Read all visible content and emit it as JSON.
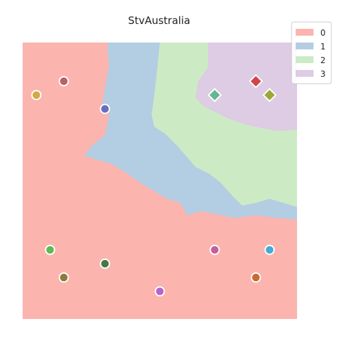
{
  "chart_data": {
    "type": "scatter",
    "title": "StvAustralia",
    "xlabel": "",
    "ylabel": "",
    "xlim": [
      0,
      20
    ],
    "ylim": [
      0,
      20
    ],
    "axes_visible": false,
    "grid": false,
    "legend_placement": "top-right",
    "legend": [
      {
        "label": "0",
        "color": "#fbb4ae"
      },
      {
        "label": "1",
        "color": "#b3cde3"
      },
      {
        "label": "2",
        "color": "#ccebc5"
      },
      {
        "label": "3",
        "color": "#decbe4"
      }
    ],
    "regions": {
      "class_3": [
        [
          13.5,
          20
        ],
        [
          20,
          20
        ],
        [
          20,
          13.7
        ],
        [
          18.5,
          13.6
        ],
        [
          16.5,
          14.0
        ],
        [
          15.0,
          14.5
        ],
        [
          14.0,
          15.0
        ],
        [
          13.2,
          15.4
        ],
        [
          12.6,
          16.0
        ],
        [
          12.8,
          17.2
        ],
        [
          13.5,
          18.2
        ]
      ],
      "class_2": [
        [
          10,
          20
        ],
        [
          13.5,
          20
        ],
        [
          13.5,
          18.2
        ],
        [
          12.8,
          17.2
        ],
        [
          12.6,
          16.0
        ],
        [
          13.2,
          15.4
        ],
        [
          14.0,
          15.0
        ],
        [
          15.0,
          14.5
        ],
        [
          16.5,
          14.0
        ],
        [
          18.5,
          13.6
        ],
        [
          20,
          13.7
        ],
        [
          20,
          8.1
        ],
        [
          19.0,
          8.4
        ],
        [
          18.0,
          8.7
        ],
        [
          17.0,
          8.4
        ],
        [
          16.0,
          8.2
        ],
        [
          15.2,
          9.0
        ],
        [
          14.4,
          9.9
        ],
        [
          13.6,
          10.5
        ],
        [
          12.6,
          11.0
        ],
        [
          12.0,
          11.7
        ],
        [
          11.2,
          12.6
        ],
        [
          10.4,
          13.4
        ],
        [
          9.6,
          13.9
        ],
        [
          9.4,
          14.8
        ],
        [
          9.6,
          16.2
        ],
        [
          9.8,
          18.0
        ]
      ],
      "class_1": [
        [
          6.2,
          20
        ],
        [
          10,
          20
        ],
        [
          9.8,
          18.0
        ],
        [
          9.6,
          16.2
        ],
        [
          9.4,
          14.8
        ],
        [
          9.6,
          13.9
        ],
        [
          10.4,
          13.4
        ],
        [
          11.2,
          12.6
        ],
        [
          12.0,
          11.7
        ],
        [
          12.6,
          11.0
        ],
        [
          13.6,
          10.5
        ],
        [
          14.4,
          9.9
        ],
        [
          15.2,
          9.0
        ],
        [
          16.0,
          8.2
        ],
        [
          17.0,
          8.4
        ],
        [
          18.0,
          8.7
        ],
        [
          19.0,
          8.4
        ],
        [
          20,
          8.1
        ],
        [
          20,
          7.2
        ],
        [
          18.5,
          7.3
        ],
        [
          17.0,
          7.5
        ],
        [
          15.5,
          7.3
        ],
        [
          14.0,
          7.6
        ],
        [
          13.0,
          7.8
        ],
        [
          12.0,
          7.5
        ],
        [
          11.5,
          8.4
        ],
        [
          10.5,
          8.7
        ],
        [
          9.5,
          9.3
        ],
        [
          8.5,
          9.9
        ],
        [
          7.5,
          10.6
        ],
        [
          6.5,
          11.2
        ],
        [
          5.5,
          11.5
        ],
        [
          4.5,
          11.8
        ],
        [
          5.0,
          12.5
        ],
        [
          6.0,
          13.3
        ],
        [
          6.3,
          14.8
        ],
        [
          5.8,
          15.5
        ],
        [
          6.0,
          16.8
        ],
        [
          6.3,
          18.4
        ],
        [
          6.2,
          19.4
        ]
      ]
    },
    "points": [
      {
        "x": 1.0,
        "y": 16.2,
        "color": "#d6a945",
        "marker": "circle"
      },
      {
        "x": 3.0,
        "y": 17.2,
        "color": "#bd5f6b",
        "marker": "circle"
      },
      {
        "x": 6.0,
        "y": 15.2,
        "color": "#6a6ec0",
        "marker": "circle"
      },
      {
        "x": 2.0,
        "y": 5.0,
        "color": "#5eb956",
        "marker": "circle"
      },
      {
        "x": 3.0,
        "y": 3.0,
        "color": "#8d7a3f",
        "marker": "circle"
      },
      {
        "x": 6.0,
        "y": 4.0,
        "color": "#467a43",
        "marker": "circle"
      },
      {
        "x": 10.0,
        "y": 2.0,
        "color": "#b764c4",
        "marker": "circle"
      },
      {
        "x": 14.0,
        "y": 5.0,
        "color": "#c45f9b",
        "marker": "circle"
      },
      {
        "x": 17.0,
        "y": 3.0,
        "color": "#c96a35",
        "marker": "circle"
      },
      {
        "x": 18.0,
        "y": 5.0,
        "color": "#45aad4",
        "marker": "circle"
      },
      {
        "x": 14.0,
        "y": 16.2,
        "color": "#62b892",
        "marker": "diamond"
      },
      {
        "x": 17.0,
        "y": 17.2,
        "color": "#d0454a",
        "marker": "diamond"
      },
      {
        "x": 18.0,
        "y": 16.2,
        "color": "#9ca83a",
        "marker": "diamond"
      }
    ]
  }
}
